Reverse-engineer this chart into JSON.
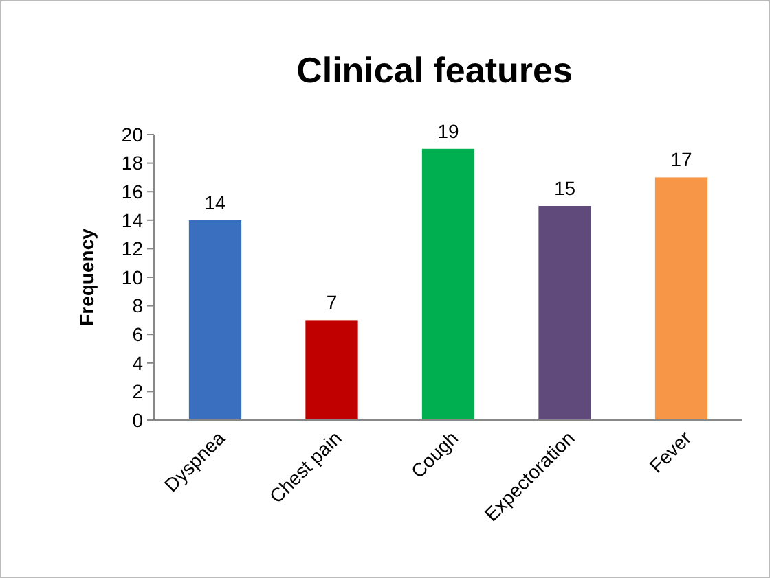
{
  "chart_data": {
    "type": "bar",
    "title": "Clinical features",
    "ylabel": "Frequency",
    "categories": [
      "Dyspnea",
      "Chest pain",
      "Cough",
      "Expectoration",
      "Fever"
    ],
    "values": [
      14,
      7,
      19,
      15,
      17
    ],
    "colors": [
      "#3a6fc0",
      "#c00000",
      "#00b050",
      "#604a7b",
      "#f79646"
    ],
    "ylim": [
      0,
      20
    ],
    "yticks": [
      0,
      2,
      4,
      6,
      8,
      10,
      12,
      14,
      16,
      18,
      20
    ],
    "grid": false,
    "data_labels": true
  }
}
